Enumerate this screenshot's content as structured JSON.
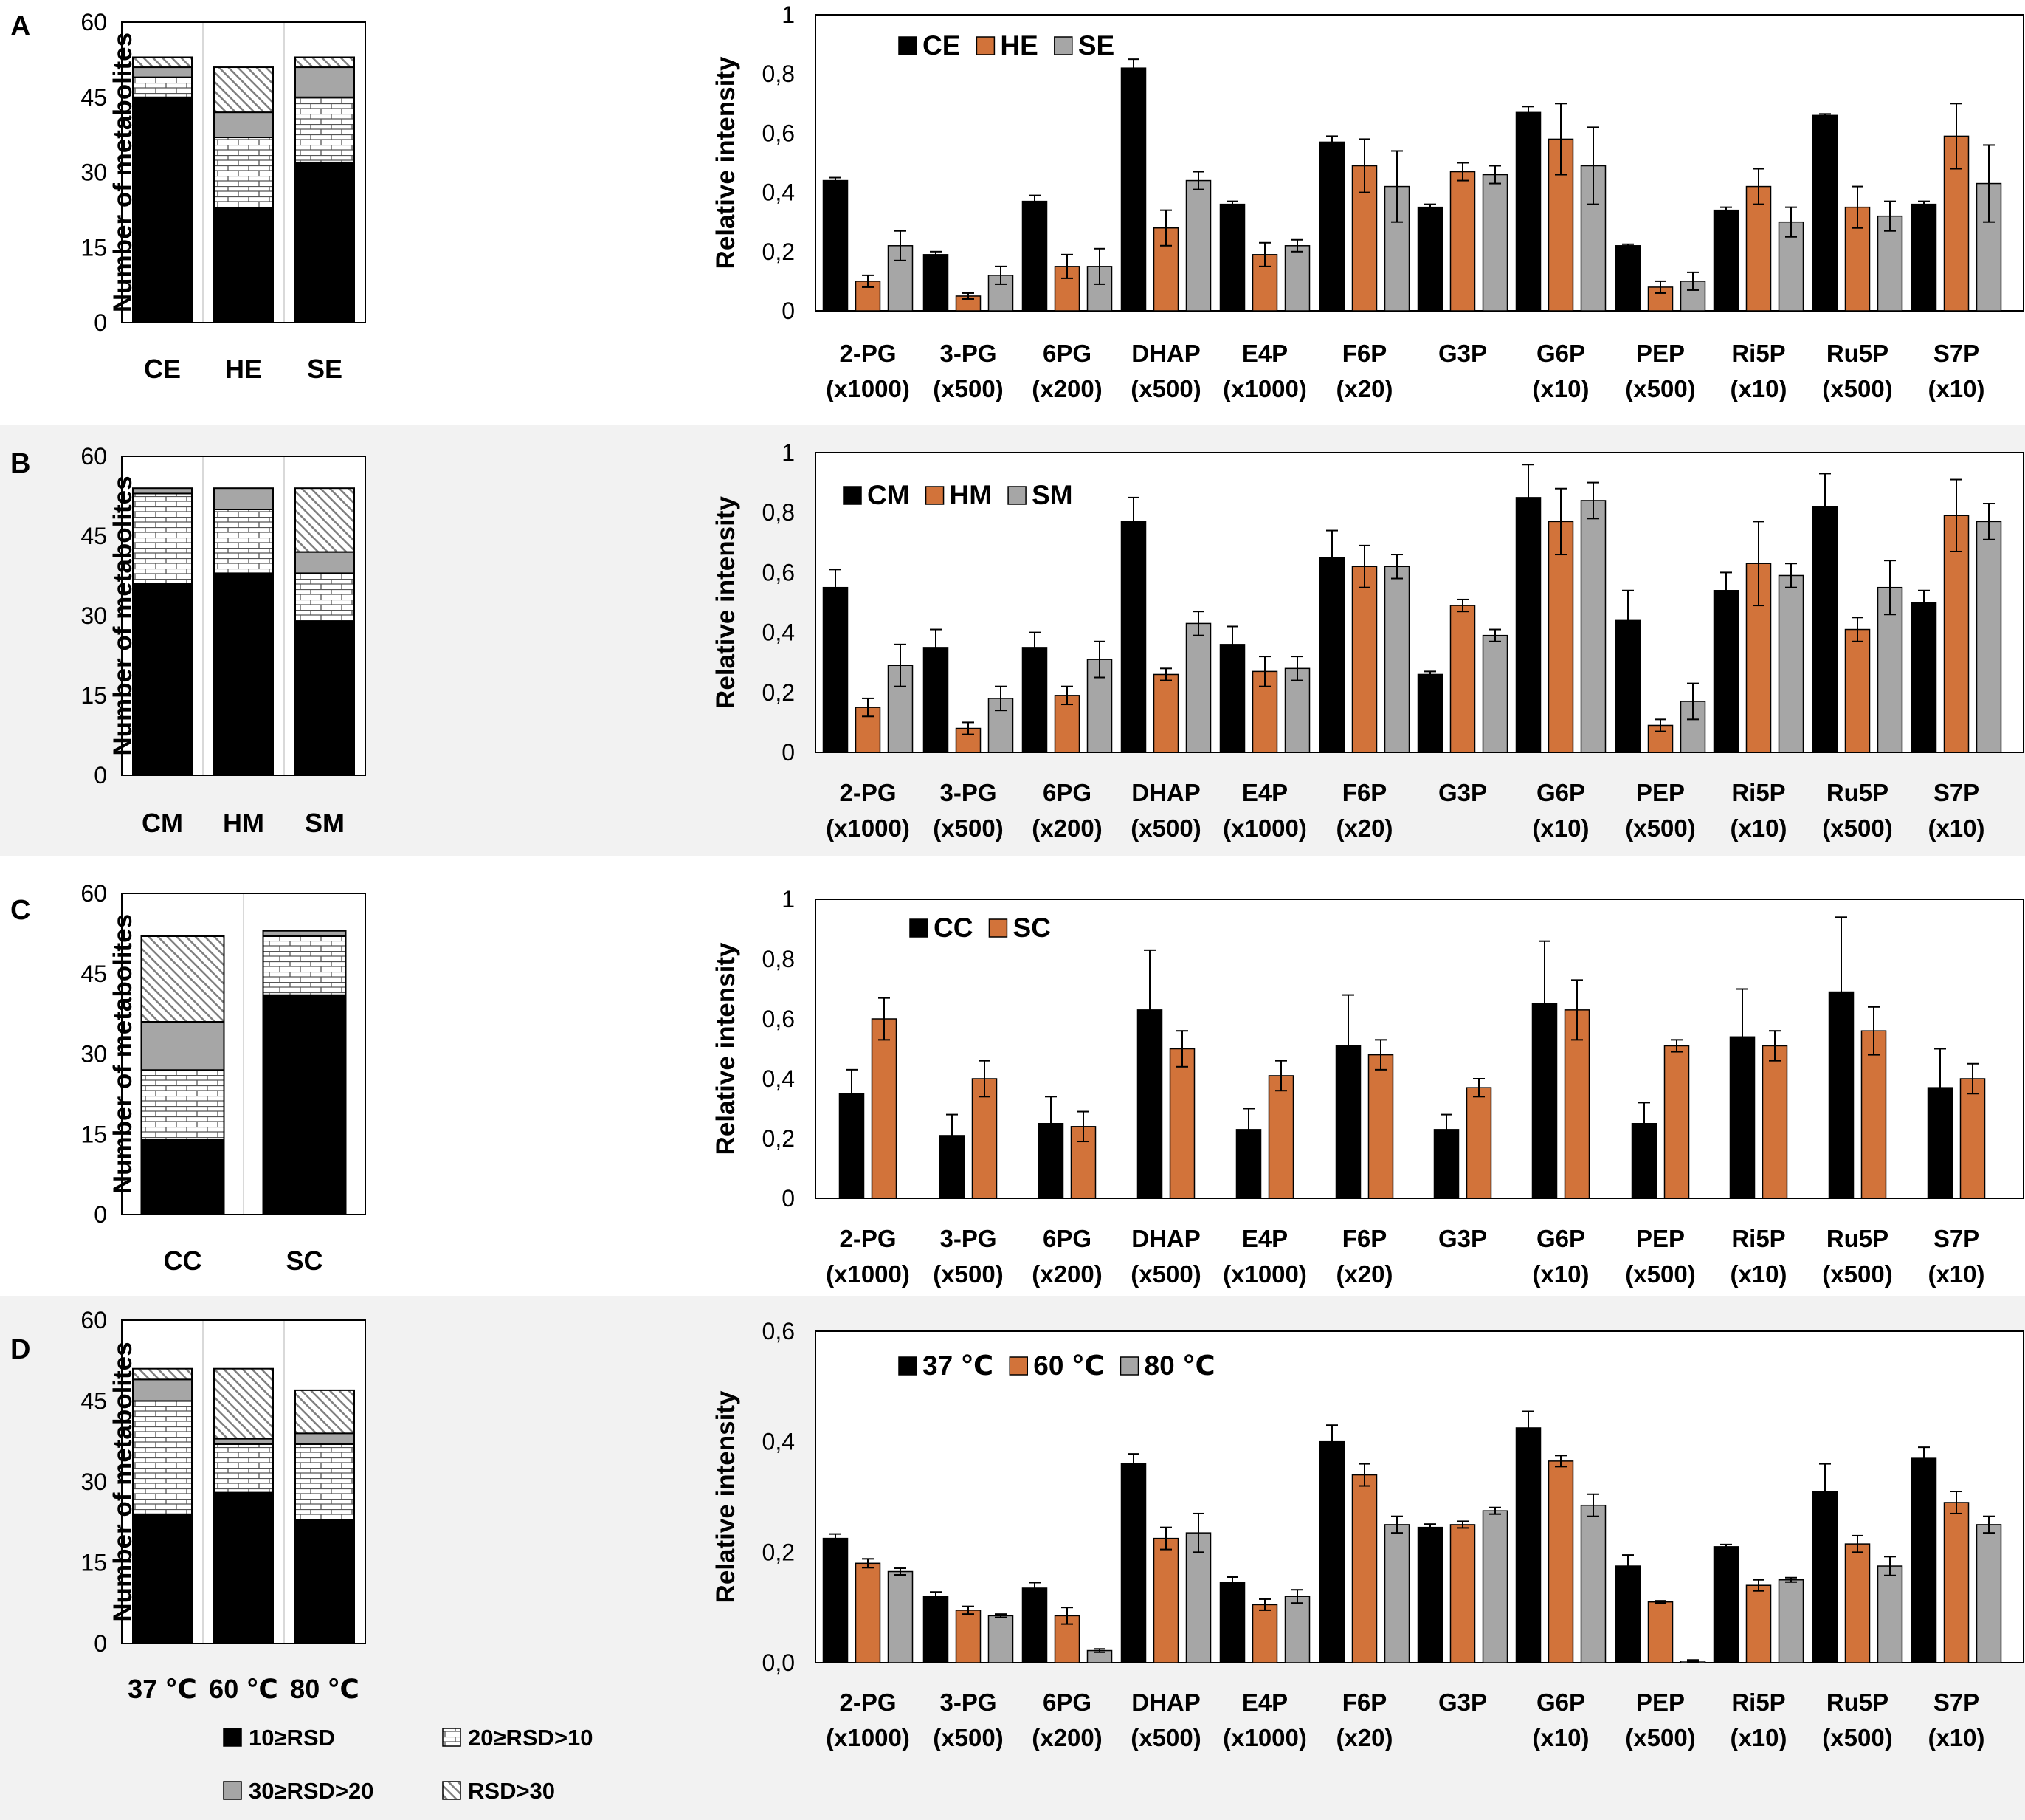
{
  "figure": {
    "panel_labels": [
      "A",
      "B",
      "C",
      "D"
    ],
    "rsd_legend": [
      "10≥RSD",
      "20≥RSD>10",
      "30≥RSD>20",
      "RSD>30"
    ],
    "colors": {
      "black": "#000000",
      "orange": "#D2733A",
      "gray": "#A6A6A6",
      "dark_gray": "#808080",
      "white": "#FFFFFF",
      "panel_bg": "#F2F2F2"
    }
  },
  "chart_data": [
    {
      "id": "A-left",
      "type": "bar",
      "stacked": true,
      "ylabel": "Number of metabolites",
      "ylim": [
        0,
        60
      ],
      "yticks": [
        "0",
        "15",
        "30",
        "45",
        "60"
      ],
      "categories": [
        "CE",
        "HE",
        "SE"
      ],
      "series": [
        {
          "name": "10≥RSD",
          "values": [
            45,
            23,
            32
          ]
        },
        {
          "name": "20≥RSD>10",
          "values": [
            4,
            14,
            13
          ]
        },
        {
          "name": "30≥RSD>20",
          "values": [
            2,
            5,
            6
          ]
        },
        {
          "name": "RSD>30",
          "values": [
            2,
            9,
            2
          ]
        }
      ]
    },
    {
      "id": "A-right",
      "type": "bar",
      "ylabel": "Relative intensity",
      "ylim": [
        0,
        1
      ],
      "yticks": [
        "0",
        "0,2",
        "0,4",
        "0,6",
        "0,8",
        "1"
      ],
      "categories": [
        "2-PG",
        "3-PG",
        "6PG",
        "DHAP",
        "E4P",
        "F6P",
        "G3P",
        "G6P",
        "PEP",
        "Ri5P",
        "Ru5P",
        "S7P"
      ],
      "category_scales": [
        "(x1000)",
        "(x500)",
        "(x200)",
        "(x500)",
        "(x1000)",
        "(x20)",
        "",
        "(x10)",
        "(x500)",
        "(x10)",
        "(x500)",
        "(x10)"
      ],
      "series": [
        {
          "name": "CE",
          "values": [
            0.44,
            0.19,
            0.37,
            0.82,
            0.36,
            0.57,
            0.35,
            0.67,
            0.22,
            0.34,
            0.66,
            0.36
          ],
          "errors": [
            0.01,
            0.01,
            0.02,
            0.03,
            0.01,
            0.02,
            0.01,
            0.02,
            0.005,
            0.01,
            0.005,
            0.01
          ]
        },
        {
          "name": "HE",
          "values": [
            0.1,
            0.05,
            0.15,
            0.28,
            0.19,
            0.49,
            0.47,
            0.58,
            0.08,
            0.42,
            0.35,
            0.59
          ],
          "errors": [
            0.02,
            0.01,
            0.04,
            0.06,
            0.04,
            0.09,
            0.03,
            0.12,
            0.02,
            0.06,
            0.07,
            0.11
          ]
        },
        {
          "name": "SE",
          "values": [
            0.22,
            0.12,
            0.15,
            0.44,
            0.22,
            0.42,
            0.46,
            0.49,
            0.1,
            0.3,
            0.32,
            0.43
          ],
          "errors": [
            0.05,
            0.03,
            0.06,
            0.03,
            0.02,
            0.12,
            0.03,
            0.13,
            0.03,
            0.05,
            0.05,
            0.13
          ]
        }
      ]
    },
    {
      "id": "B-left",
      "type": "bar",
      "stacked": true,
      "ylabel": "Number of metabolites",
      "ylim": [
        0,
        60
      ],
      "yticks": [
        "0",
        "15",
        "30",
        "45",
        "60"
      ],
      "categories": [
        "CM",
        "HM",
        "SM"
      ],
      "series": [
        {
          "name": "10≥RSD",
          "values": [
            36,
            38,
            29
          ]
        },
        {
          "name": "20≥RSD>10",
          "values": [
            17,
            12,
            9
          ]
        },
        {
          "name": "30≥RSD>20",
          "values": [
            1,
            4,
            4
          ]
        },
        {
          "name": "RSD>30",
          "values": [
            0,
            0,
            12
          ]
        }
      ]
    },
    {
      "id": "B-right",
      "type": "bar",
      "ylabel": "Relative intensity",
      "ylim": [
        0,
        1
      ],
      "yticks": [
        "0",
        "0,2",
        "0,4",
        "0,6",
        "0,8",
        "1"
      ],
      "categories": [
        "2-PG",
        "3-PG",
        "6PG",
        "DHAP",
        "E4P",
        "F6P",
        "G3P",
        "G6P",
        "PEP",
        "Ri5P",
        "Ru5P",
        "S7P"
      ],
      "category_scales": [
        "(x1000)",
        "(x500)",
        "(x200)",
        "(x500)",
        "(x1000)",
        "(x20)",
        "",
        "(x10)",
        "(x500)",
        "(x10)",
        "(x500)",
        "(x10)"
      ],
      "series": [
        {
          "name": "CM",
          "values": [
            0.55,
            0.35,
            0.35,
            0.77,
            0.36,
            0.65,
            0.26,
            0.85,
            0.44,
            0.54,
            0.82,
            0.5
          ],
          "errors": [
            0.06,
            0.06,
            0.05,
            0.08,
            0.06,
            0.09,
            0.01,
            0.11,
            0.1,
            0.06,
            0.11,
            0.04
          ]
        },
        {
          "name": "HM",
          "values": [
            0.15,
            0.08,
            0.19,
            0.26,
            0.27,
            0.62,
            0.49,
            0.77,
            0.09,
            0.63,
            0.41,
            0.79
          ],
          "errors": [
            0.03,
            0.02,
            0.03,
            0.02,
            0.05,
            0.07,
            0.02,
            0.11,
            0.02,
            0.14,
            0.04,
            0.12
          ]
        },
        {
          "name": "SM",
          "values": [
            0.29,
            0.18,
            0.31,
            0.43,
            0.28,
            0.62,
            0.39,
            0.84,
            0.17,
            0.59,
            0.55,
            0.77
          ],
          "errors": [
            0.07,
            0.04,
            0.06,
            0.04,
            0.04,
            0.04,
            0.02,
            0.06,
            0.06,
            0.04,
            0.09,
            0.06
          ]
        }
      ]
    },
    {
      "id": "C-left",
      "type": "bar",
      "stacked": true,
      "ylabel": "Number of metabolites",
      "ylim": [
        0,
        60
      ],
      "yticks": [
        "0",
        "15",
        "30",
        "45",
        "60"
      ],
      "categories": [
        "CC",
        "SC"
      ],
      "series": [
        {
          "name": "10≥RSD",
          "values": [
            14,
            41
          ]
        },
        {
          "name": "20≥RSD>10",
          "values": [
            13,
            11
          ]
        },
        {
          "name": "30≥RSD>20",
          "values": [
            9,
            1
          ]
        },
        {
          "name": "RSD>30",
          "values": [
            16,
            0
          ]
        }
      ]
    },
    {
      "id": "C-right",
      "type": "bar",
      "ylabel": "Relative intensity",
      "ylim": [
        0,
        1
      ],
      "yticks": [
        "0",
        "0,2",
        "0,4",
        "0,6",
        "0,8",
        "1"
      ],
      "categories": [
        "2-PG",
        "3-PG",
        "6PG",
        "DHAP",
        "E4P",
        "F6P",
        "G3P",
        "G6P",
        "PEP",
        "Ri5P",
        "Ru5P",
        "S7P"
      ],
      "category_scales": [
        "(x1000)",
        "(x500)",
        "(x200)",
        "(x500)",
        "(x1000)",
        "(x20)",
        "",
        "(x10)",
        "(x500)",
        "(x10)",
        "(x500)",
        "(x10)"
      ],
      "series": [
        {
          "name": "CC",
          "values": [
            0.35,
            0.21,
            0.25,
            0.63,
            0.23,
            0.51,
            0.23,
            0.65,
            0.25,
            0.54,
            0.69,
            0.37
          ],
          "errors": [
            0.08,
            0.07,
            0.09,
            0.2,
            0.07,
            0.17,
            0.05,
            0.21,
            0.07,
            0.16,
            0.25,
            0.13
          ]
        },
        {
          "name": "SC",
          "values": [
            0.6,
            0.4,
            0.24,
            0.5,
            0.41,
            0.48,
            0.37,
            0.63,
            0.51,
            0.51,
            0.56,
            0.4
          ],
          "errors": [
            0.07,
            0.06,
            0.05,
            0.06,
            0.05,
            0.05,
            0.03,
            0.1,
            0.02,
            0.05,
            0.08,
            0.05
          ]
        }
      ]
    },
    {
      "id": "D-left",
      "type": "bar",
      "stacked": true,
      "ylabel": "Number of metabolites",
      "ylim": [
        0,
        60
      ],
      "yticks": [
        "0",
        "15",
        "30",
        "45",
        "60"
      ],
      "categories": [
        "37 ℃",
        "60  ℃",
        "80  ℃"
      ],
      "series": [
        {
          "name": "10≥RSD",
          "values": [
            24,
            28,
            23
          ]
        },
        {
          "name": "20≥RSD>10",
          "values": [
            21,
            9,
            14
          ]
        },
        {
          "name": "30≥RSD>20",
          "values": [
            4,
            1,
            2
          ]
        },
        {
          "name": "RSD>30",
          "values": [
            2,
            13,
            8
          ]
        }
      ]
    },
    {
      "id": "D-right",
      "type": "bar",
      "ylabel": "Relative intensity",
      "ylim": [
        0,
        0.6
      ],
      "yticks": [
        "0,0",
        "0,2",
        "0,4",
        "0,6"
      ],
      "categories": [
        "2-PG",
        "3-PG",
        "6PG",
        "DHAP",
        "E4P",
        "F6P",
        "G3P",
        "G6P",
        "PEP",
        "Ri5P",
        "Ru5P",
        "S7P"
      ],
      "category_scales": [
        "(x1000)",
        "(x500)",
        "(x200)",
        "(x500)",
        "(x1000)",
        "(x20)",
        "",
        "(x10)",
        "(x500)",
        "(x10)",
        "(x500)",
        "(x10)"
      ],
      "series": [
        {
          "name": "37 ℃",
          "values": [
            0.225,
            0.12,
            0.135,
            0.36,
            0.145,
            0.4,
            0.245,
            0.425,
            0.175,
            0.21,
            0.31,
            0.37
          ],
          "errors": [
            0.008,
            0.008,
            0.01,
            0.018,
            0.01,
            0.03,
            0.006,
            0.03,
            0.02,
            0.004,
            0.05,
            0.02
          ]
        },
        {
          "name": "60 ℃",
          "values": [
            0.18,
            0.095,
            0.085,
            0.225,
            0.105,
            0.34,
            0.25,
            0.365,
            0.11,
            0.14,
            0.215,
            0.29
          ],
          "errors": [
            0.008,
            0.007,
            0.015,
            0.02,
            0.01,
            0.02,
            0.006,
            0.01,
            0.002,
            0.01,
            0.015,
            0.02
          ]
        },
        {
          "name": "80 ℃",
          "values": [
            0.165,
            0.085,
            0.022,
            0.235,
            0.12,
            0.25,
            0.275,
            0.285,
            0.003,
            0.15,
            0.175,
            0.25
          ],
          "errors": [
            0.006,
            0.003,
            0.003,
            0.035,
            0.012,
            0.015,
            0.006,
            0.02,
            0.002,
            0.004,
            0.017,
            0.015
          ]
        }
      ]
    }
  ]
}
